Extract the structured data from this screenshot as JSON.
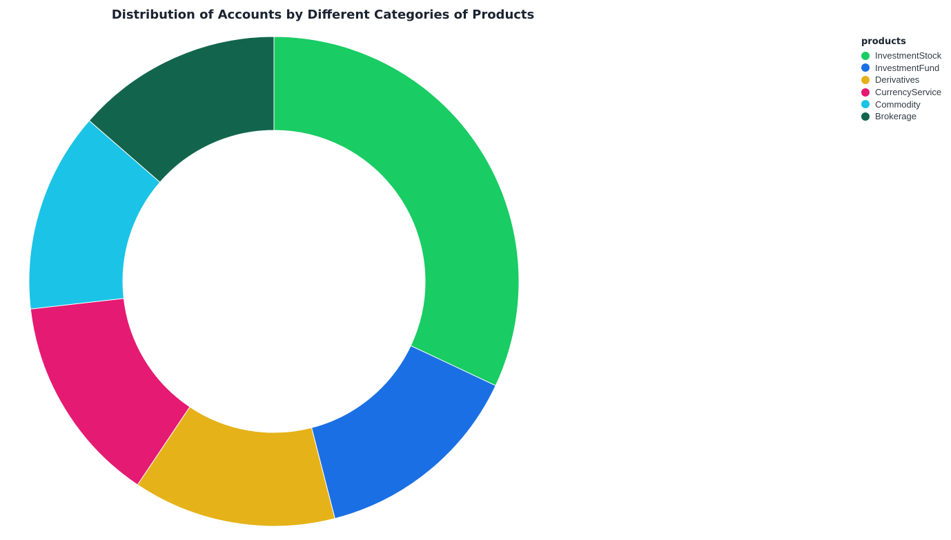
{
  "chart_data": {
    "type": "pie",
    "title": "Distribution of Accounts by Different Categories of Products",
    "legend_title": "products",
    "legend_placement": "top-right",
    "donut": true,
    "slices": [
      {
        "label": "InvestmentStock",
        "value": 32,
        "color": "#19cc63"
      },
      {
        "label": "InvestmentFund",
        "value": 14,
        "color": "#1b6fe4"
      },
      {
        "label": "Derivatives",
        "value": 13.4,
        "color": "#e5b219"
      },
      {
        "label": "CurrencyService",
        "value": 13.8,
        "color": "#e51a72"
      },
      {
        "label": "Commodity",
        "value": 13.2,
        "color": "#1bc3e6"
      },
      {
        "label": "Brokerage",
        "value": 13.6,
        "color": "#12654c"
      }
    ]
  }
}
